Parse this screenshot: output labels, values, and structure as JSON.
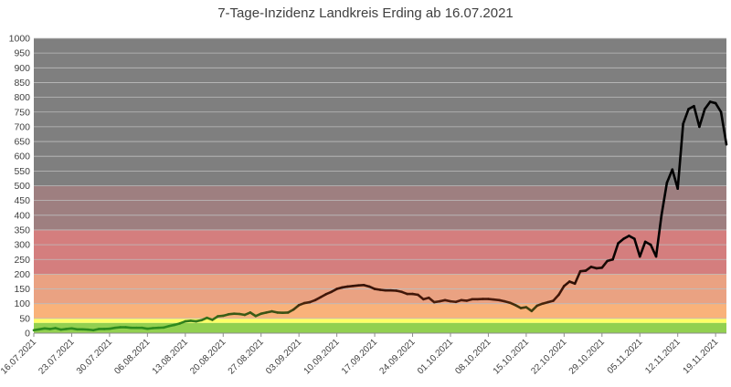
{
  "chart_data": {
    "type": "line",
    "title": "7-Tage-Inzidenz Landkreis Erding ab 16.07.2021",
    "xlabel": "",
    "ylabel": "",
    "ylim": [
      0,
      1000
    ],
    "yticks": [
      0,
      50,
      100,
      150,
      200,
      250,
      300,
      350,
      400,
      450,
      500,
      550,
      600,
      650,
      700,
      750,
      800,
      850,
      900,
      950,
      1000
    ],
    "grid": true,
    "legend": "none",
    "xdomain": [
      "16.07.2021",
      "21.11.2021"
    ],
    "x_tick_labels": [
      "16.07.2021",
      "23.07.2021",
      "30.07.2021",
      "06.08.2021",
      "13.08.2021",
      "20.08.2021",
      "27.08.2021",
      "03.09.2021",
      "10.09.2021",
      "17.09.2021",
      "24.09.2021",
      "01.10.2021",
      "08.10.2021",
      "15.10.2021",
      "22.10.2021",
      "29.10.2021",
      "05.11.2021",
      "12.11.2021",
      "19.11.2021"
    ],
    "bands": [
      {
        "from": 0,
        "to": 35,
        "color": "#92d050"
      },
      {
        "from": 35,
        "to": 50,
        "color": "#ffff66"
      },
      {
        "from": 50,
        "to": 100,
        "color": "#f9b27a"
      },
      {
        "from": 100,
        "to": 200,
        "color": "#eaa282"
      },
      {
        "from": 200,
        "to": 350,
        "color": "#d47e7e"
      },
      {
        "from": 350,
        "to": 500,
        "color": "#9e7f80"
      },
      {
        "from": 500,
        "to": 1000,
        "color": "#7f7f7f"
      }
    ],
    "line_colors": {
      "low": "#2e8b1e",
      "mid": "#4a1a0a",
      "high": "#000000"
    },
    "series": [
      {
        "x": [
          "16.07.2021",
          "17.07.2021",
          "18.07.2021",
          "19.07.2021",
          "20.07.2021",
          "21.07.2021",
          "22.07.2021",
          "23.07.2021",
          "24.07.2021",
          "25.07.2021",
          "26.07.2021",
          "27.07.2021",
          "28.07.2021",
          "29.07.2021",
          "30.07.2021",
          "31.07.2021",
          "01.08.2021",
          "02.08.2021",
          "03.08.2021",
          "04.08.2021",
          "05.08.2021",
          "06.08.2021",
          "07.08.2021",
          "08.08.2021",
          "09.08.2021",
          "10.08.2021",
          "11.08.2021",
          "12.08.2021",
          "13.08.2021",
          "14.08.2021",
          "15.08.2021",
          "16.08.2021",
          "17.08.2021",
          "18.08.2021",
          "19.08.2021",
          "20.08.2021",
          "21.08.2021",
          "22.08.2021",
          "23.08.2021",
          "24.08.2021",
          "25.08.2021",
          "26.08.2021",
          "27.08.2021",
          "28.08.2021",
          "29.08.2021",
          "30.08.2021",
          "31.08.2021",
          "01.09.2021",
          "02.09.2021",
          "03.09.2021",
          "04.09.2021",
          "05.09.2021",
          "06.09.2021",
          "07.09.2021",
          "08.09.2021",
          "09.09.2021",
          "10.09.2021",
          "11.09.2021",
          "12.09.2021",
          "13.09.2021",
          "14.09.2021",
          "15.09.2021",
          "16.09.2021",
          "17.09.2021",
          "18.09.2021",
          "19.09.2021",
          "20.09.2021",
          "21.09.2021",
          "22.09.2021",
          "23.09.2021",
          "24.09.2021",
          "25.09.2021",
          "26.09.2021",
          "27.09.2021",
          "28.09.2021",
          "29.09.2021",
          "30.09.2021",
          "01.10.2021",
          "02.10.2021",
          "03.10.2021",
          "04.10.2021",
          "05.10.2021",
          "06.10.2021",
          "07.10.2021",
          "08.10.2021",
          "09.10.2021",
          "10.10.2021",
          "11.10.2021",
          "12.10.2021",
          "13.10.2021",
          "14.10.2021",
          "15.10.2021",
          "16.10.2021",
          "17.10.2021",
          "18.10.2021",
          "19.10.2021",
          "20.10.2021",
          "21.10.2021",
          "22.10.2021",
          "23.10.2021",
          "24.10.2021",
          "25.10.2021",
          "26.10.2021",
          "27.10.2021",
          "28.10.2021",
          "29.10.2021",
          "30.10.2021",
          "31.10.2021",
          "01.11.2021",
          "02.11.2021",
          "03.11.2021",
          "04.11.2021",
          "05.11.2021",
          "06.11.2021",
          "07.11.2021",
          "08.11.2021",
          "09.11.2021",
          "10.11.2021",
          "11.11.2021",
          "12.11.2021",
          "13.11.2021",
          "14.11.2021",
          "15.11.2021",
          "16.11.2021",
          "17.11.2021",
          "18.11.2021",
          "19.11.2021",
          "20.11.2021",
          "21.11.2021"
        ],
        "y": [
          10,
          13,
          16,
          14,
          17,
          12,
          14,
          16,
          13,
          13,
          12,
          10,
          14,
          14,
          15,
          18,
          20,
          20,
          18,
          18,
          18,
          15,
          17,
          18,
          19,
          24,
          28,
          33,
          40,
          42,
          40,
          44,
          52,
          45,
          57,
          59,
          64,
          66,
          65,
          62,
          70,
          58,
          66,
          70,
          74,
          70,
          69,
          70,
          80,
          95,
          102,
          105,
          112,
          122,
          132,
          140,
          150,
          155,
          158,
          160,
          162,
          163,
          158,
          150,
          147,
          145,
          145,
          144,
          140,
          133,
          133,
          130,
          115,
          120,
          105,
          108,
          112,
          108,
          106,
          112,
          110,
          115,
          115,
          116,
          116,
          114,
          112,
          108,
          103,
          95,
          85,
          88,
          75,
          93,
          100,
          105,
          110,
          130,
          160,
          175,
          168,
          210,
          212,
          225,
          220,
          222,
          245,
          250,
          305,
          320,
          330,
          320,
          260,
          310,
          300,
          260,
          400,
          510,
          555,
          490,
          710,
          760,
          770,
          700,
          760,
          785,
          780,
          750,
          640
        ]
      }
    ]
  }
}
